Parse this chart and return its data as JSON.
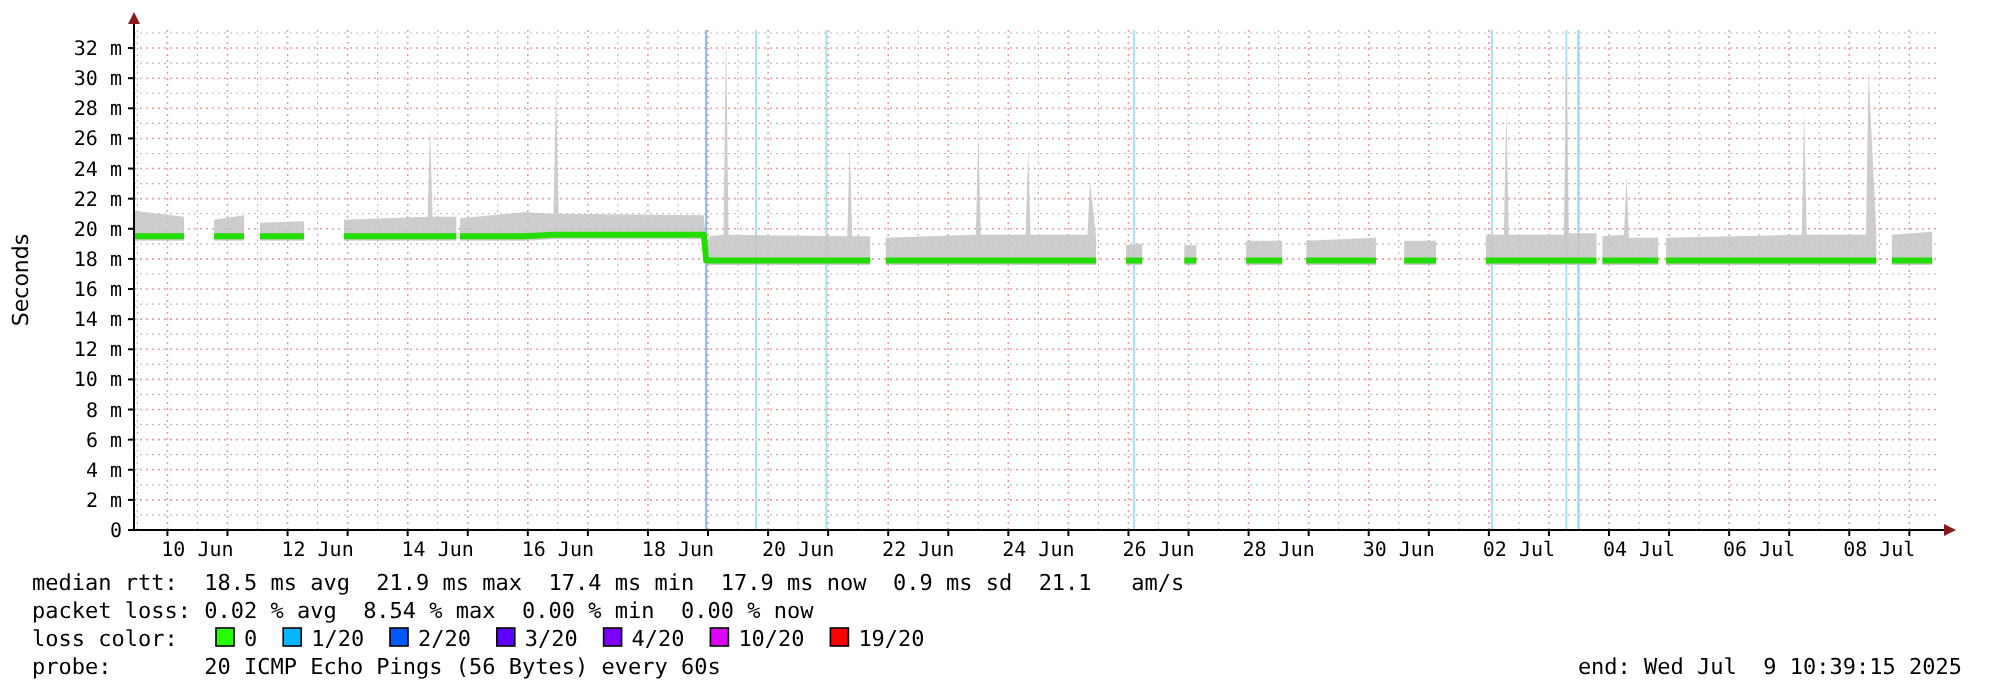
{
  "chart_data": {
    "type": "line",
    "ylabel": "Seconds",
    "xlim": [
      "2025-06-09T10:39",
      "2025-07-09T10:39"
    ],
    "xticks": [
      {
        "value": "2025-06-10T12:00",
        "label": "10 Jun"
      },
      {
        "value": "2025-06-12T12:00",
        "label": "12 Jun"
      },
      {
        "value": "2025-06-14T12:00",
        "label": "14 Jun"
      },
      {
        "value": "2025-06-16T12:00",
        "label": "16 Jun"
      },
      {
        "value": "2025-06-18T12:00",
        "label": "18 Jun"
      },
      {
        "value": "2025-06-20T12:00",
        "label": "20 Jun"
      },
      {
        "value": "2025-06-22T12:00",
        "label": "22 Jun"
      },
      {
        "value": "2025-06-24T12:00",
        "label": "24 Jun"
      },
      {
        "value": "2025-06-26T12:00",
        "label": "26 Jun"
      },
      {
        "value": "2025-06-28T12:00",
        "label": "28 Jun"
      },
      {
        "value": "2025-06-30T12:00",
        "label": "30 Jun"
      },
      {
        "value": "2025-07-02T12:00",
        "label": "02 Jul"
      },
      {
        "value": "2025-07-04T12:00",
        "label": "04 Jul"
      },
      {
        "value": "2025-07-06T12:00",
        "label": "06 Jul"
      },
      {
        "value": "2025-07-08T12:00",
        "label": "08 Jul"
      }
    ],
    "ylim": [
      0,
      33.2
    ],
    "yticks": [
      0,
      {
        "value": 2,
        "label": "2 m"
      },
      {
        "value": 4,
        "label": "4 m"
      },
      {
        "value": 6,
        "label": "6 m"
      },
      {
        "value": 8,
        "label": "8 m"
      },
      {
        "value": 10,
        "label": "10 m"
      },
      {
        "value": 12,
        "label": "12 m"
      },
      {
        "value": 14,
        "label": "14 m"
      },
      {
        "value": 16,
        "label": "16 m"
      },
      {
        "value": 18,
        "label": "18 m"
      },
      {
        "value": 20,
        "label": "20 m"
      },
      {
        "value": 22,
        "label": "22 m"
      },
      {
        "value": 24,
        "label": "24 m"
      },
      {
        "value": 26,
        "label": "26 m"
      },
      {
        "value": 28,
        "label": "28 m"
      },
      {
        "value": 30,
        "label": "30 m"
      },
      {
        "value": 32,
        "label": "32 m"
      }
    ],
    "grid": true,
    "marker": "none",
    "line_style": "solid",
    "series": [
      {
        "color": "#22dd00",
        "x": [
          "2025-06-09T10:39",
          "2025-06-10T06:39",
          "2025-06-10T12:00",
          "2025-06-10T18:38",
          "2025-06-11T06:37",
          "2025-06-11T09:00",
          "2025-06-11T13:00",
          "2025-06-12T06:36",
          "2025-06-12T14:00",
          "2025-06-12T22:33",
          "2025-06-14T07:57",
          "2025-06-14T08:57",
          "2025-06-14T09:57",
          "2025-06-14T19:26",
          "2025-06-14T20:00",
          "2025-06-14T20:53",
          "2025-06-15T22:34",
          "2025-06-16T10:17",
          "2025-06-16T11:17",
          "2025-06-16T12:17",
          "2025-06-18T22:19",
          "2025-06-18T23:16",
          "2025-06-19T00:43",
          "2025-06-19T06:12",
          "2025-06-19T07:12",
          "2025-06-19T08:12",
          "2025-06-21T07:38",
          "2025-06-21T08:38",
          "2025-06-21T09:38",
          "2025-06-21T16:48",
          "2025-06-21T20:00",
          "2025-06-21T23:03",
          "2025-06-23T11:00",
          "2025-06-23T12:00",
          "2025-06-23T13:00",
          "2025-06-24T06:55",
          "2025-06-24T07:55",
          "2025-06-24T08:55",
          "2025-06-25T07:38",
          "2025-06-25T08:38",
          "2025-06-25T11:02",
          "2025-06-25T17:00",
          "2025-06-25T23:02",
          "2025-06-26T05:31",
          "2025-06-26T12:00",
          "2025-06-26T22:19",
          "2025-06-27T03:07",
          "2025-06-27T12:00",
          "2025-06-27T23:02",
          "2025-06-28T13:26",
          "2025-06-28T18:00",
          "2025-06-28T23:02",
          "2025-06-30T02:53",
          "2025-06-30T08:00",
          "2025-06-30T14:10",
          "2025-07-01T02:53",
          "2025-07-01T12:00",
          "2025-07-01T22:48",
          "2025-07-02T05:58",
          "2025-07-02T06:58",
          "2025-07-02T07:58",
          "2025-07-03T05:58",
          "2025-07-03T06:58",
          "2025-07-03T07:58",
          "2025-07-03T18:58",
          "2025-07-03T20:00",
          "2025-07-03T21:22",
          "2025-07-04T05:58",
          "2025-07-04T06:58",
          "2025-07-04T07:58",
          "2025-07-04T19:41",
          "2025-07-04T21:00",
          "2025-07-04T22:48",
          "2025-07-07T05:00",
          "2025-07-07T06:00",
          "2025-07-07T07:00",
          "2025-07-08T06:41",
          "2025-07-08T07:41",
          "2025-07-08T10:48",
          "2025-07-08T14:00",
          "2025-07-08T17:02",
          "2025-07-09T09:07"
        ],
        "values": [
          19.5,
          19.5,
          null,
          19.5,
          19.5,
          null,
          19.5,
          19.5,
          null,
          19.5,
          19.5,
          19.5,
          19.5,
          19.5,
          null,
          19.5,
          19.5,
          19.6,
          19.6,
          19.6,
          19.6,
          17.9,
          17.9,
          17.9,
          17.9,
          17.9,
          17.9,
          17.9,
          17.9,
          17.9,
          null,
          17.9,
          17.9,
          17.9,
          17.9,
          17.9,
          17.9,
          17.9,
          17.9,
          17.9,
          17.9,
          null,
          17.9,
          17.9,
          null,
          17.9,
          17.9,
          null,
          17.9,
          17.9,
          null,
          17.9,
          17.9,
          null,
          17.9,
          17.9,
          null,
          17.9,
          17.9,
          17.9,
          17.9,
          17.9,
          17.9,
          17.9,
          17.9,
          null,
          17.9,
          17.9,
          17.9,
          17.9,
          17.9,
          null,
          17.9,
          17.9,
          17.9,
          17.9,
          17.9,
          17.9,
          17.9,
          null,
          17.9,
          17.9
        ],
        "lower": [
          19.2,
          19.2,
          null,
          19.2,
          19.2,
          null,
          19.2,
          19.2,
          null,
          19.2,
          19.2,
          19.2,
          19.2,
          19.2,
          null,
          19.2,
          19.2,
          19.3,
          19.3,
          19.3,
          19.3,
          17.6,
          17.6,
          17.6,
          17.6,
          17.6,
          17.6,
          17.6,
          17.6,
          17.6,
          null,
          17.6,
          17.6,
          17.6,
          17.6,
          17.6,
          17.6,
          17.6,
          17.6,
          17.6,
          17.6,
          null,
          17.6,
          17.6,
          null,
          17.6,
          17.6,
          null,
          17.6,
          17.6,
          null,
          17.6,
          17.6,
          null,
          17.6,
          17.6,
          null,
          17.6,
          17.6,
          17.6,
          17.6,
          17.6,
          17.6,
          17.6,
          17.6,
          null,
          17.6,
          17.6,
          17.6,
          17.6,
          17.6,
          null,
          17.6,
          17.6,
          17.6,
          17.6,
          17.6,
          17.6,
          17.6,
          null,
          17.6,
          17.6
        ],
        "upper": [
          21.2,
          20.8,
          null,
          20.6,
          20.9,
          null,
          20.4,
          20.5,
          null,
          20.6,
          20.8,
          26.7,
          20.8,
          20.8,
          null,
          20.7,
          21.1,
          21.0,
          29.5,
          21.0,
          20.9,
          19.0,
          19.5,
          19.6,
          33.2,
          19.6,
          19.5,
          25.5,
          19.5,
          19.5,
          null,
          19.4,
          19.6,
          26.1,
          19.6,
          19.6,
          25.3,
          19.6,
          19.6,
          23.1,
          19.5,
          null,
          18.9,
          19.0,
          null,
          18.9,
          18.9,
          null,
          19.2,
          19.2,
          null,
          19.2,
          19.4,
          null,
          19.2,
          19.2,
          null,
          19.6,
          19.6,
          27.9,
          19.6,
          19.6,
          31.5,
          19.7,
          19.7,
          null,
          19.5,
          19.6,
          23.5,
          19.4,
          19.4,
          null,
          19.4,
          19.6,
          27.7,
          19.6,
          19.6,
          30.4,
          19.7,
          null,
          19.6,
          19.8
        ]
      }
    ],
    "ref_lines": [
      {
        "axis": "x",
        "value": "2025-06-18T23:16",
        "color": "#8ab4f8"
      },
      {
        "axis": "x",
        "value": "2025-06-19T19:12",
        "color": "#a8e0f5"
      },
      {
        "axis": "x",
        "value": "2025-06-20T23:16",
        "color": "#a8e0f5"
      },
      {
        "axis": "x",
        "value": "2025-06-26T02:10",
        "color": "#a8e0f5"
      },
      {
        "axis": "x",
        "value": "2025-07-02T01:12",
        "color": "#a8e0f5"
      },
      {
        "axis": "x",
        "value": "2025-07-03T06:58",
        "color": "#a8e0f5"
      },
      {
        "axis": "x",
        "value": "2025-07-03T11:46",
        "color": "#8fd6f5"
      }
    ],
    "annotations": [
      "median rtt:  18.5 ms avg  21.9 ms max  17.4 ms min  17.9 ms now  0.9 ms sd  21.1   am/s",
      "packet loss: 0.02 % avg  8.54 % max  0.00 % min  0.00 % now",
      "loss color:",
      "0",
      "1/20",
      "2/20",
      "3/20",
      "4/20",
      "10/20",
      "19/20",
      "probe:       20 ICMP Echo Pings (56 Bytes) every 60s",
      "end: Wed Jul  9 10:39:15 2025"
    ]
  }
}
